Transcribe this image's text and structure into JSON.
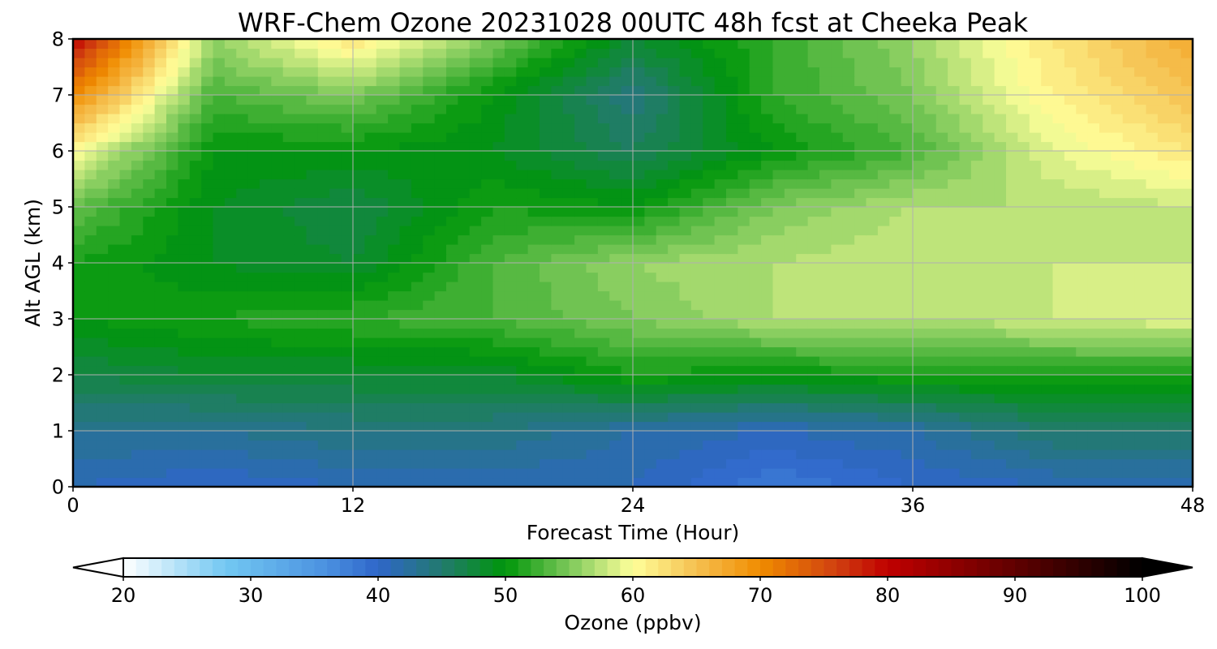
{
  "chart_data": {
    "type": "heatmap",
    "title": "WRF-Chem Ozone  20231028 00UTC 48h fcst at Cheeka Peak",
    "xlabel": "Forecast Time (Hour)",
    "ylabel": "Alt AGL (km)",
    "xlim": [
      0,
      48
    ],
    "ylim": [
      0,
      8
    ],
    "xticks": [
      "0",
      "12",
      "24",
      "36",
      "48"
    ],
    "yticks": [
      "0",
      "1",
      "2",
      "3",
      "4",
      "5",
      "6",
      "7",
      "8"
    ],
    "grid": true,
    "x": [
      0,
      6,
      12,
      18,
      24,
      30,
      36,
      42,
      48
    ],
    "y": [
      0,
      1,
      2,
      3,
      4,
      5,
      6,
      7,
      8
    ],
    "z": [
      [
        41,
        40,
        41,
        41,
        41,
        38,
        40,
        41,
        41
      ],
      [
        43,
        43,
        44,
        44,
        42,
        41,
        42,
        45,
        45
      ],
      [
        47,
        48,
        48,
        48,
        51,
        50,
        51,
        51,
        51
      ],
      [
        50,
        51,
        52,
        53,
        55,
        57,
        57,
        58,
        59
      ],
      [
        51,
        49,
        48,
        53,
        56,
        57,
        58,
        58,
        58
      ],
      [
        54,
        49,
        47,
        51,
        50,
        55,
        57,
        57,
        58
      ],
      [
        60,
        50,
        50,
        49,
        46,
        50,
        53,
        59,
        62
      ],
      [
        70,
        53,
        55,
        50,
        44,
        52,
        55,
        61,
        65
      ],
      [
        80,
        56,
        62,
        55,
        48,
        52,
        56,
        62,
        67
      ]
    ],
    "colorbar": {
      "label": "Ozone  (ppbv)",
      "min": 20,
      "max": 100,
      "ticks": [
        "20",
        "30",
        "40",
        "50",
        "60",
        "70",
        "80",
        "90",
        "100"
      ],
      "extend": "both",
      "stops": [
        [
          20,
          "#ffffff"
        ],
        [
          28,
          "#73c8f2"
        ],
        [
          36,
          "#4a90e0"
        ],
        [
          40,
          "#2f66c9"
        ],
        [
          45,
          "#227a6e"
        ],
        [
          50,
          "#00960a"
        ],
        [
          55,
          "#7cc85a"
        ],
        [
          60,
          "#ffff9a"
        ],
        [
          65,
          "#f5c050"
        ],
        [
          70,
          "#f08c00"
        ],
        [
          76,
          "#d04010"
        ],
        [
          80,
          "#c00000"
        ],
        [
          90,
          "#600000"
        ],
        [
          100,
          "#000000"
        ]
      ]
    }
  }
}
